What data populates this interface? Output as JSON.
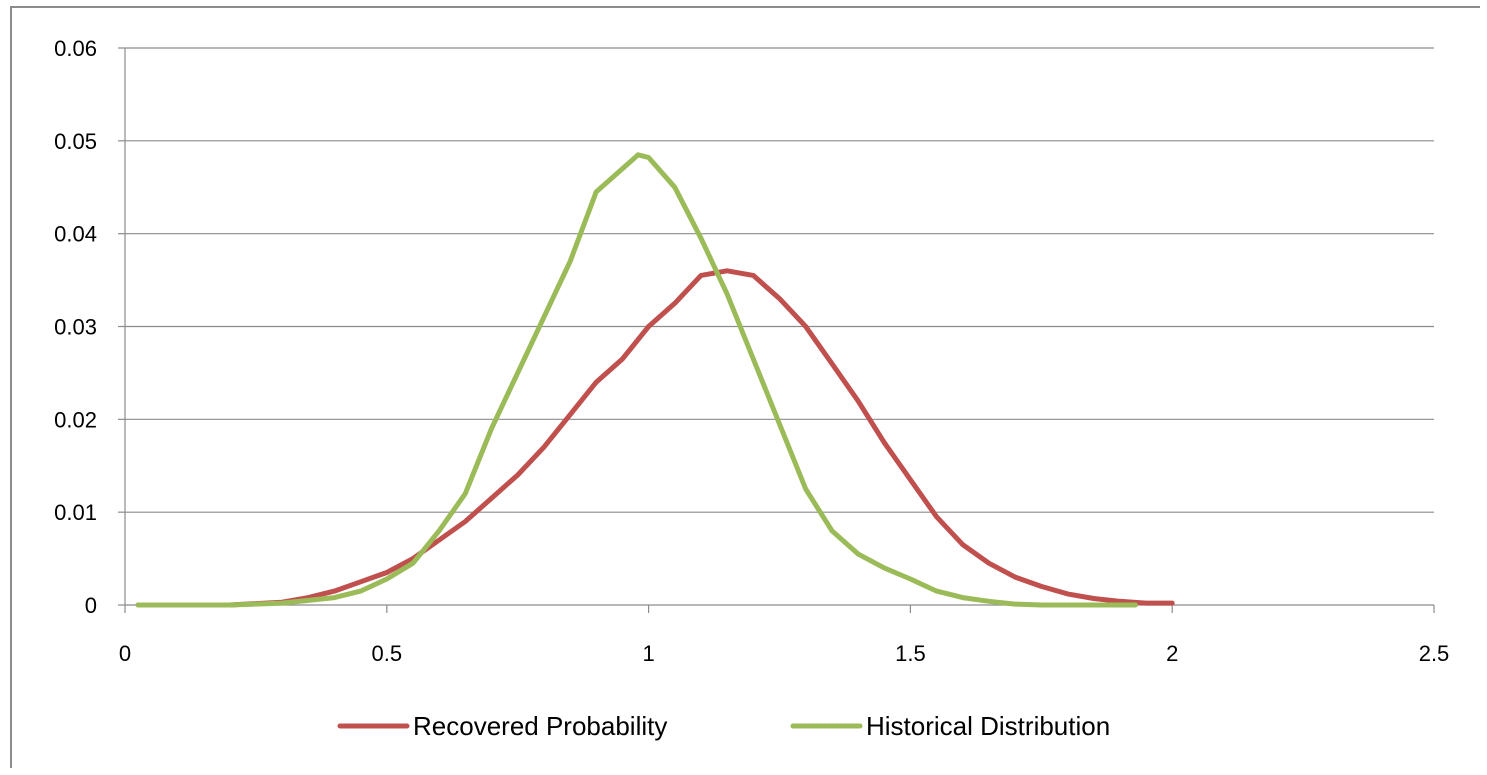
{
  "chart_data": {
    "type": "line",
    "title": "",
    "xlabel": "",
    "ylabel": "",
    "xlim": [
      0,
      2.5
    ],
    "ylim": [
      0,
      0.06
    ],
    "x_ticks": [
      "0",
      "0.5",
      "1",
      "1.5",
      "2",
      "2.5"
    ],
    "y_ticks": [
      "0",
      "0.01",
      "0.02",
      "0.03",
      "0.04",
      "0.05",
      "0.06"
    ],
    "grid": "horizontal",
    "legend_position": "bottom",
    "series": [
      {
        "name": "Recovered Probability",
        "color": "#c0504d",
        "x": [
          0.025,
          0.1,
          0.2,
          0.3,
          0.35,
          0.4,
          0.45,
          0.5,
          0.55,
          0.6,
          0.65,
          0.7,
          0.75,
          0.8,
          0.85,
          0.9,
          0.95,
          1.0,
          1.05,
          1.1,
          1.15,
          1.2,
          1.25,
          1.3,
          1.35,
          1.4,
          1.45,
          1.5,
          1.55,
          1.6,
          1.65,
          1.7,
          1.75,
          1.8,
          1.85,
          1.9,
          1.95,
          2.0
        ],
        "values": [
          0,
          0,
          0,
          0.0003,
          0.0008,
          0.0015,
          0.0025,
          0.0035,
          0.005,
          0.007,
          0.009,
          0.0115,
          0.014,
          0.017,
          0.0205,
          0.024,
          0.0265,
          0.03,
          0.0325,
          0.0355,
          0.036,
          0.0355,
          0.033,
          0.03,
          0.026,
          0.022,
          0.0175,
          0.0135,
          0.0095,
          0.0065,
          0.0045,
          0.003,
          0.002,
          0.0012,
          0.0007,
          0.0004,
          0.0002,
          0.0002
        ]
      },
      {
        "name": "Historical Distribution",
        "color": "#9bbb59",
        "x": [
          0.025,
          0.1,
          0.2,
          0.3,
          0.35,
          0.4,
          0.45,
          0.5,
          0.55,
          0.6,
          0.65,
          0.7,
          0.75,
          0.8,
          0.85,
          0.9,
          0.95,
          0.98,
          1.0,
          1.05,
          1.1,
          1.15,
          1.2,
          1.25,
          1.3,
          1.35,
          1.4,
          1.45,
          1.5,
          1.55,
          1.6,
          1.65,
          1.7,
          1.75,
          1.8,
          1.85,
          1.9,
          1.93
        ],
        "values": [
          0,
          0,
          0,
          0.0002,
          0.0005,
          0.0008,
          0.0015,
          0.0028,
          0.0045,
          0.008,
          0.012,
          0.019,
          0.025,
          0.031,
          0.037,
          0.0445,
          0.047,
          0.0485,
          0.0482,
          0.045,
          0.0395,
          0.0335,
          0.0265,
          0.0195,
          0.0125,
          0.008,
          0.0055,
          0.004,
          0.0028,
          0.0015,
          0.0008,
          0.0004,
          0.0001,
          0,
          0,
          0,
          0,
          0
        ]
      }
    ]
  }
}
